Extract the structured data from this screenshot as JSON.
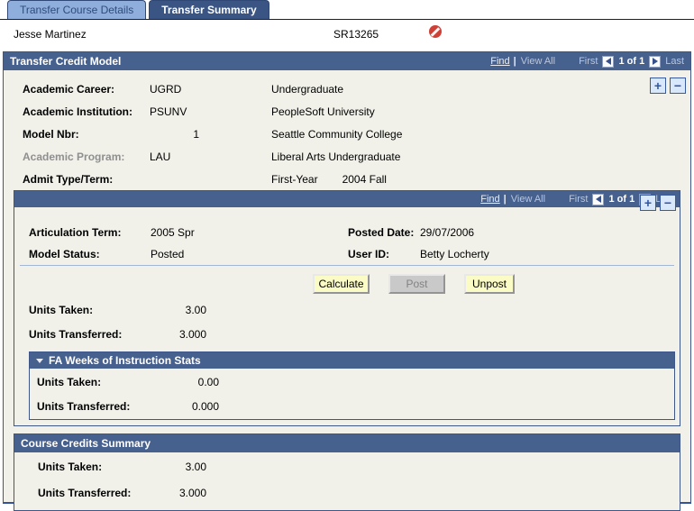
{
  "tabs": [
    {
      "label": "Transfer Course Details",
      "active": false
    },
    {
      "label": "Transfer Summary",
      "active": true
    }
  ],
  "student": {
    "name": "Jesse Martinez",
    "id": "SR13265"
  },
  "transfer_credit_model": {
    "title": "Transfer Credit Model",
    "nav": {
      "find": "Find",
      "sep": "|",
      "view_all": "View All",
      "first": "First",
      "position": "1 of 1",
      "last": "Last"
    },
    "add_row": "+",
    "delete_row": "−",
    "fields": [
      {
        "label": "Academic Career:",
        "value": "UGRD",
        "description": "Undergraduate"
      },
      {
        "label": "Academic Institution:",
        "value": "PSUNV",
        "description": "PeopleSoft University"
      },
      {
        "label": "Model Nbr:",
        "value": "1",
        "description": "Seattle Community College"
      },
      {
        "label": "Academic Program:",
        "value": "LAU",
        "description": "Liberal Arts Undergraduate"
      },
      {
        "label": "Admit Type/Term:",
        "value": "",
        "description": "First-Year",
        "description2": "2004 Fall"
      }
    ]
  },
  "model_detail": {
    "nav": {
      "find": "Find",
      "sep": "|",
      "view_all": "View All",
      "first": "First",
      "position": "1 of 1",
      "last": "Last"
    },
    "add_row": "+",
    "delete_row": "−",
    "fields_left": [
      {
        "label": "Articulation Term:",
        "value": "2005 Spr"
      },
      {
        "label": "Model Status:",
        "value": "Posted"
      }
    ],
    "fields_right": [
      {
        "label": "Posted Date:",
        "value": "29/07/2006"
      },
      {
        "label": "User ID:",
        "value": "Betty Locherty"
      }
    ],
    "buttons": {
      "calculate": "Calculate",
      "post": "Post",
      "unpost": "Unpost"
    },
    "units": [
      {
        "label": "Units Taken:",
        "value": "3.00"
      },
      {
        "label": "Units Transferred:",
        "value": "3.000"
      }
    ],
    "fa_stats": {
      "title": "FA Weeks of Instruction Stats",
      "units": [
        {
          "label": "Units Taken:",
          "value": "0.00"
        },
        {
          "label": "Units Transferred:",
          "value": "0.000"
        }
      ]
    }
  },
  "course_credits_summary": {
    "title": "Course Credits Summary",
    "units": [
      {
        "label": "Units Taken:",
        "value": "3.00"
      },
      {
        "label": "Units Transferred:",
        "value": "3.000"
      }
    ]
  },
  "colors": {
    "header_bar": "#47618f",
    "tab_active": "#3a5583",
    "tab_inactive": "#8faedb",
    "button_yellow": "#fbfbc6",
    "button_disabled": "#c9c9c9",
    "no_entry_red": "#ce4036",
    "content_bg": "#f1f1ea",
    "border": "#3e5788"
  }
}
